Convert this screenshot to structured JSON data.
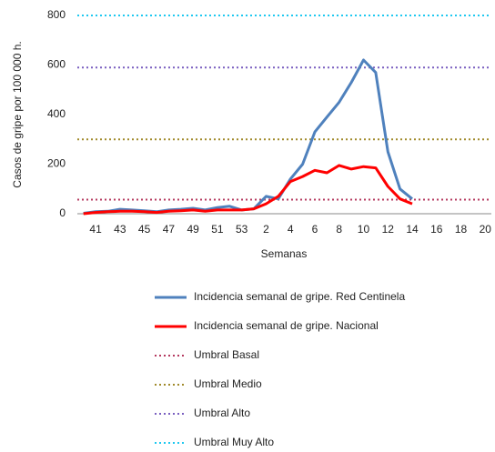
{
  "chart_data": {
    "type": "line",
    "y_label": "Casos de gripe por 100 000 h.",
    "x_label": "Semanas",
    "categories": [
      null,
      "41",
      null,
      "43",
      null,
      "45",
      null,
      "47",
      null,
      "49",
      null,
      "51",
      null,
      "53",
      null,
      "2",
      null,
      "4",
      null,
      "6",
      null,
      "8",
      null,
      "10",
      null,
      "12",
      null,
      "14",
      null,
      "16",
      null,
      "18",
      null,
      "20"
    ],
    "ylim": [
      0,
      800
    ],
    "yticks": [
      0,
      200,
      400,
      600,
      800
    ],
    "grid": false,
    "series": [
      {
        "name": "Incidencia semanal de gripe. Red Centinela",
        "color": "#4f81bd",
        "values": [
          2,
          8,
          10,
          18,
          15,
          12,
          8,
          15,
          18,
          22,
          15,
          25,
          30,
          15,
          20,
          70,
          60,
          140,
          200,
          330,
          390,
          450,
          530,
          620,
          570,
          250,
          100,
          60,
          null,
          null,
          null,
          null,
          null,
          null
        ]
      },
      {
        "name": "Incidencia semanal de gripe. Nacional",
        "color": "#ff0000",
        "values": [
          0,
          5,
          8,
          10,
          10,
          8,
          5,
          10,
          12,
          15,
          10,
          15,
          15,
          15,
          20,
          40,
          70,
          130,
          150,
          175,
          165,
          195,
          180,
          190,
          185,
          110,
          60,
          40,
          null,
          null,
          null,
          null,
          null,
          null
        ]
      }
    ],
    "thresholds": [
      {
        "name": "Umbral Basal",
        "color": "#b5395f",
        "value": 57
      },
      {
        "name": "Umbral Medio",
        "color": "#a08a2a",
        "value": 300
      },
      {
        "name": "Umbral Alto",
        "color": "#7a5fc0",
        "value": 590
      },
      {
        "name": "Umbral Muy Alto",
        "color": "#1ec8f0",
        "value": 800
      }
    ]
  }
}
